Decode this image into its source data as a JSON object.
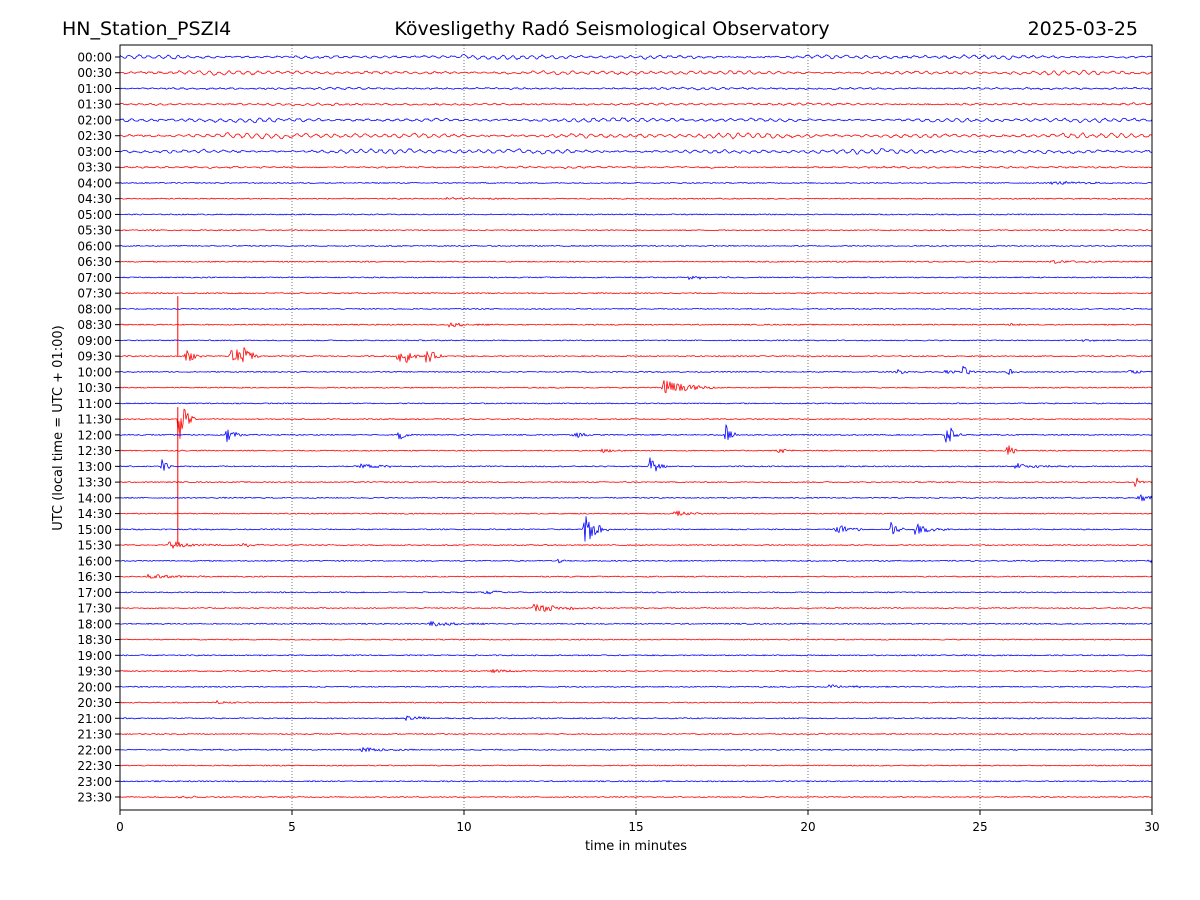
{
  "chart_data": {
    "type": "line",
    "title_left": "HN_Station_PSZI4",
    "title_center": "Kövesligethy Radó Seismological Observatory",
    "title_right": "2025-03-25",
    "xlabel": "time in minutes",
    "ylabel": "UTC (local time = UTC + 01:00)",
    "xlim": [
      0,
      30
    ],
    "x_ticks": [
      0,
      5,
      10,
      15,
      20,
      25,
      30
    ],
    "grid": "vertical dotted at x ticks",
    "colors": [
      "#0000ff",
      "#ff0000"
    ],
    "row_labels": [
      "00:00",
      "00:30",
      "01:00",
      "01:30",
      "02:00",
      "02:30",
      "03:00",
      "03:30",
      "04:00",
      "04:30",
      "05:00",
      "05:30",
      "06:00",
      "06:30",
      "07:00",
      "07:30",
      "08:00",
      "08:30",
      "09:00",
      "09:30",
      "10:00",
      "10:30",
      "11:00",
      "11:30",
      "12:00",
      "12:30",
      "13:00",
      "13:30",
      "14:00",
      "14:30",
      "15:00",
      "15:30",
      "16:00",
      "16:30",
      "17:00",
      "17:30",
      "18:00",
      "18:30",
      "19:00",
      "19:30",
      "20:00",
      "20:30",
      "21:00",
      "21:30",
      "22:00",
      "22:30",
      "23:00",
      "23:30"
    ],
    "microseism_rows": {
      "00:00": 1.0,
      "00:30": 1.0,
      "01:00": 0.5,
      "01:30": 0.5,
      "02:00": 1.0,
      "02:30": 1.3,
      "03:00": 1.2,
      "03:30": 0.4
    },
    "events": [
      {
        "row": "04:00",
        "t": 27.0,
        "amp": 2,
        "dur": 1.0
      },
      {
        "row": "04:30",
        "t": 9.5,
        "amp": 1.5,
        "dur": 1.0
      },
      {
        "row": "06:30",
        "t": 27.0,
        "amp": 2,
        "dur": 1.0
      },
      {
        "row": "07:00",
        "t": 16.5,
        "amp": 2,
        "dur": 0.8
      },
      {
        "row": "08:30",
        "t": 9.5,
        "amp": 3,
        "dur": 0.6
      },
      {
        "row": "08:30",
        "t": 25.8,
        "amp": 2.5,
        "dur": 0.3
      },
      {
        "row": "09:00",
        "t": 27.8,
        "amp": 2,
        "dur": 0.5
      },
      {
        "row": "09:30",
        "t": 1.9,
        "amp": 10,
        "dur": 0.2
      },
      {
        "row": "09:30",
        "t": 3.2,
        "amp": 12,
        "dur": 0.3
      },
      {
        "row": "09:30",
        "t": 3.6,
        "amp": 10,
        "dur": 0.2
      },
      {
        "row": "09:30",
        "t": 8.0,
        "amp": 12,
        "dur": 0.15
      },
      {
        "row": "09:30",
        "t": 8.3,
        "amp": 8,
        "dur": 0.2
      },
      {
        "row": "09:30",
        "t": 8.9,
        "amp": 10,
        "dur": 0.2
      },
      {
        "row": "10:00",
        "t": 22.6,
        "amp": 4,
        "dur": 0.15
      },
      {
        "row": "10:00",
        "t": 24.0,
        "amp": 4,
        "dur": 0.2
      },
      {
        "row": "10:00",
        "t": 24.5,
        "amp": 6,
        "dur": 0.2
      },
      {
        "row": "10:00",
        "t": 25.8,
        "amp": 5,
        "dur": 0.15
      },
      {
        "row": "10:00",
        "t": 29.2,
        "amp": 4,
        "dur": 0.3
      },
      {
        "row": "10:30",
        "t": 15.8,
        "amp": 9,
        "dur": 0.6
      },
      {
        "row": "11:30",
        "t": 1.7,
        "amp": 25,
        "dur": 0.2
      },
      {
        "row": "12:00",
        "t": 3.1,
        "amp": 9,
        "dur": 0.2
      },
      {
        "row": "12:00",
        "t": 8.1,
        "amp": 6,
        "dur": 0.2
      },
      {
        "row": "12:00",
        "t": 13.2,
        "amp": 7,
        "dur": 0.2
      },
      {
        "row": "12:00",
        "t": 17.6,
        "amp": 12,
        "dur": 0.15
      },
      {
        "row": "12:00",
        "t": 24.0,
        "amp": 14,
        "dur": 0.2
      },
      {
        "row": "12:30",
        "t": 14.0,
        "amp": 4,
        "dur": 0.3
      },
      {
        "row": "12:30",
        "t": 19.1,
        "amp": 4,
        "dur": 0.2
      },
      {
        "row": "12:30",
        "t": 25.8,
        "amp": 9,
        "dur": 0.15
      },
      {
        "row": "13:00",
        "t": 1.2,
        "amp": 12,
        "dur": 0.15
      },
      {
        "row": "13:00",
        "t": 7.0,
        "amp": 3,
        "dur": 0.6
      },
      {
        "row": "13:00",
        "t": 15.4,
        "amp": 9,
        "dur": 0.25
      },
      {
        "row": "13:00",
        "t": 26.0,
        "amp": 3,
        "dur": 0.8
      },
      {
        "row": "13:30",
        "t": 29.5,
        "amp": 6,
        "dur": 0.15
      },
      {
        "row": "14:00",
        "t": 29.6,
        "amp": 4,
        "dur": 0.8
      },
      {
        "row": "14:30",
        "t": 16.1,
        "amp": 3,
        "dur": 0.5
      },
      {
        "row": "15:00",
        "t": 13.5,
        "amp": 18,
        "dur": 0.3
      },
      {
        "row": "15:00",
        "t": 20.8,
        "amp": 8,
        "dur": 0.3
      },
      {
        "row": "15:00",
        "t": 21.3,
        "amp": 5,
        "dur": 0.15
      },
      {
        "row": "15:00",
        "t": 22.4,
        "amp": 8,
        "dur": 0.2
      },
      {
        "row": "15:00",
        "t": 23.1,
        "amp": 7,
        "dur": 0.4
      },
      {
        "row": "15:30",
        "t": 1.4,
        "amp": 4,
        "dur": 0.7
      },
      {
        "row": "15:30",
        "t": 3.5,
        "amp": 2.5,
        "dur": 0.5
      },
      {
        "row": "16:00",
        "t": 12.7,
        "amp": 3,
        "dur": 0.15
      },
      {
        "row": "16:00",
        "t": 29.9,
        "amp": 3,
        "dur": 0.2
      },
      {
        "row": "16:30",
        "t": 0.8,
        "amp": 3,
        "dur": 0.8
      },
      {
        "row": "17:00",
        "t": 10.6,
        "amp": 2,
        "dur": 0.5
      },
      {
        "row": "17:30",
        "t": 12.0,
        "amp": 5,
        "dur": 0.8
      },
      {
        "row": "18:00",
        "t": 9.0,
        "amp": 3,
        "dur": 0.8
      },
      {
        "row": "19:30",
        "t": 10.8,
        "amp": 2,
        "dur": 0.5
      },
      {
        "row": "20:00",
        "t": 20.6,
        "amp": 2.5,
        "dur": 0.6
      },
      {
        "row": "20:30",
        "t": 2.8,
        "amp": 2.5,
        "dur": 0.3
      },
      {
        "row": "21:00",
        "t": 8.3,
        "amp": 3,
        "dur": 0.6
      },
      {
        "row": "22:00",
        "t": 7.0,
        "amp": 3,
        "dur": 0.7
      },
      {
        "row": "23:30",
        "t": 1.7,
        "amp": 2,
        "dur": 0.5
      }
    ],
    "spikes": [
      {
        "row": "09:30",
        "t": 1.68,
        "up": 60,
        "down": 0
      },
      {
        "row": "11:30",
        "t": 1.68,
        "up": 12,
        "down": 125
      }
    ]
  }
}
